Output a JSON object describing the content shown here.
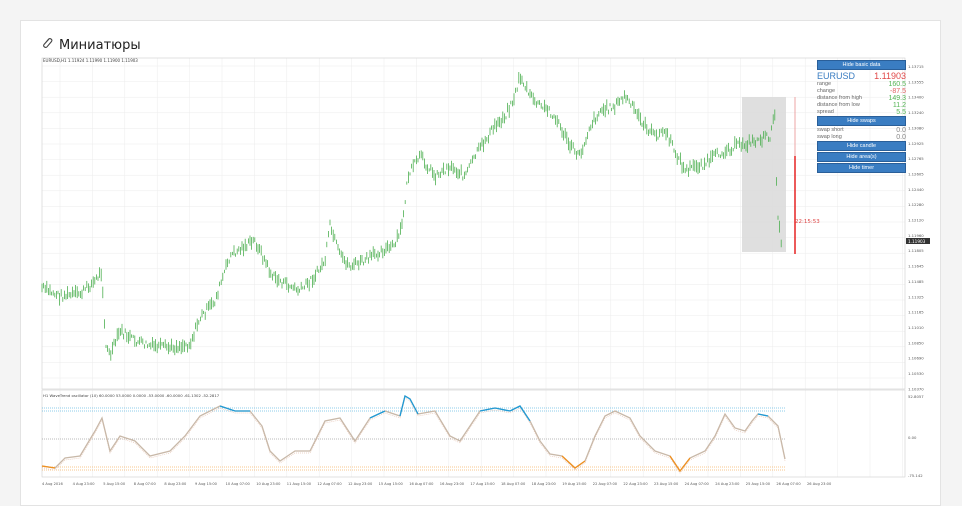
{
  "panel": {
    "title": "Миниатюры",
    "icon": "paperclip-icon"
  },
  "chart": {
    "header": "EURUSD,H1  1.11924 1.11990 1.11900 1.11903",
    "timer_label": "22:15:53",
    "current_price_label": "1.11903",
    "price_axis": [
      "1.13715",
      "1.13555",
      "1.13400",
      "1.13240",
      "1.13080",
      "1.12925",
      "1.12765",
      "1.12605",
      "1.12440",
      "1.12280",
      "1.12120",
      "1.11960",
      "1.11805",
      "1.11645",
      "1.11485",
      "1.11325",
      "1.11165",
      "1.11010",
      "1.10850",
      "1.10690",
      "1.10530",
      "1.10370"
    ],
    "osc_header": "H1 WaveTrend oscillator (10) 60.0000 53.0000 0.0000 -53.0000 -60.0000 -61.1302 -52.2817",
    "osc_axis": [
      "52.8057",
      "0.00",
      "-75.142"
    ],
    "time_axis": [
      "4 Aug 2016",
      "4 Aug 23:00",
      "5 Aug 15:00",
      "8 Aug 07:00",
      "8 Aug 23:00",
      "9 Aug 15:00",
      "10 Aug 07:00",
      "10 Aug 23:00",
      "11 Aug 15:00",
      "12 Aug 07:00",
      "12 Aug 23:00",
      "15 Aug 15:00",
      "16 Aug 07:00",
      "16 Aug 23:00",
      "17 Aug 15:00",
      "18 Aug 07:00",
      "18 Aug 23:00",
      "19 Aug 15:00",
      "22 Aug 07:00",
      "22 Aug 23:00",
      "23 Aug 15:00",
      "24 Aug 07:00",
      "24 Aug 23:00",
      "25 Aug 15:00",
      "26 Aug 07:00",
      "26 Aug 23:00"
    ],
    "colors": {
      "candles": "#4caf50",
      "osc_line": "#c8b8a8",
      "osc_high": "#1e9ad6",
      "osc_low": "#f0901e",
      "timer_line": "#e83030"
    }
  },
  "info": {
    "btn_basic": "Hide basic data",
    "symbol": "EURUSD",
    "price": "1.11903",
    "rows": [
      {
        "label": "range",
        "value": "160.5",
        "cls": "green"
      },
      {
        "label": "change",
        "value": "-87.5",
        "cls": "red"
      },
      {
        "label": "distance from high",
        "value": "149.3",
        "cls": "green"
      },
      {
        "label": "distance from low",
        "value": "11.2",
        "cls": "green"
      },
      {
        "label": "spread",
        "value": "5.5",
        "cls": "green"
      }
    ],
    "btn_swaps": "Hide swaps",
    "swaps": [
      {
        "label": "swap short",
        "value": "0.0",
        "cls": "grey"
      },
      {
        "label": "swap long",
        "value": "0.0",
        "cls": "grey"
      }
    ],
    "btn_candle": "Hide candle",
    "btn_areas": "Hide area(s)",
    "btn_timer": "Hide timer"
  }
}
